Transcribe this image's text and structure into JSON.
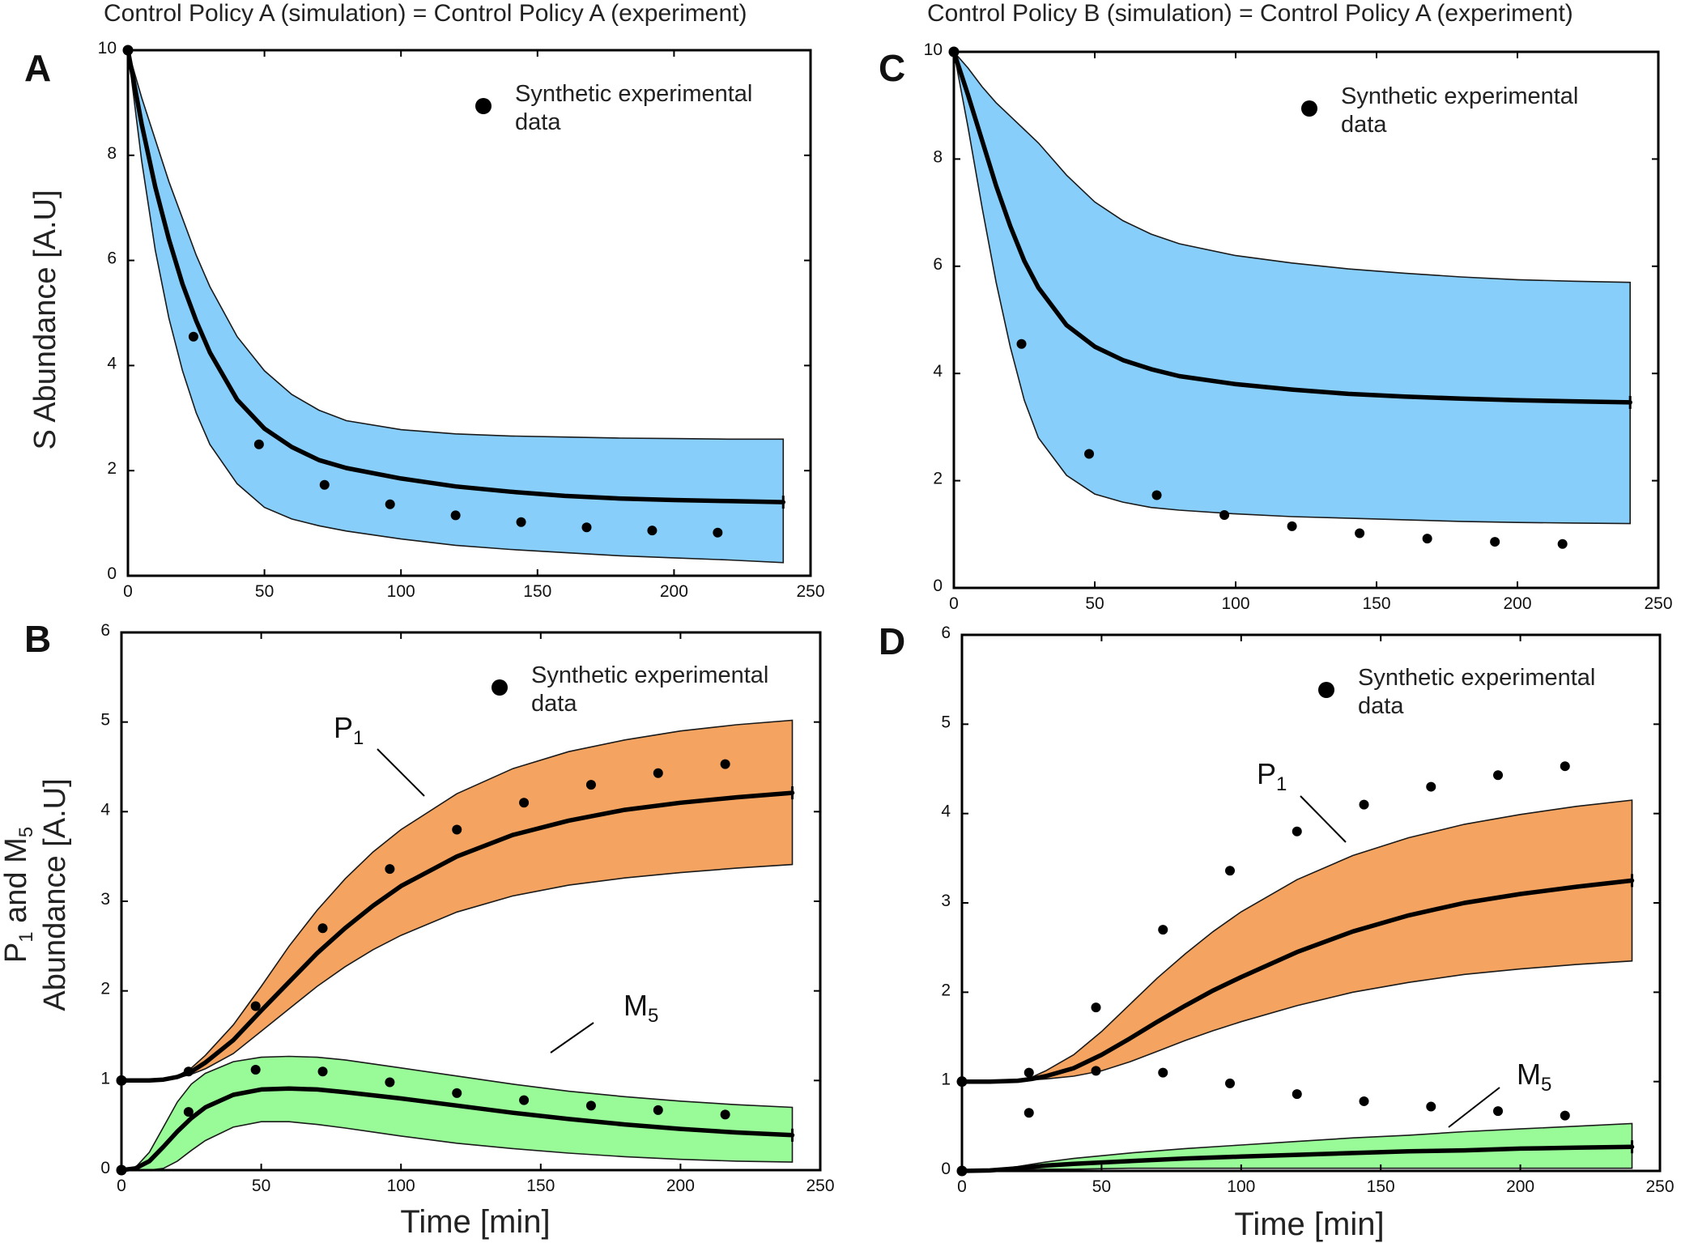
{
  "headings": {
    "left": "Control Policy A (simulation) =  Control Policy A (experiment)",
    "right": "Control Policy B (simulation) =  Control Policy A (experiment)"
  },
  "axis_labels": {
    "top_y": "S Abundance [A.U]",
    "bottom_y_line1_prefix": "P",
    "bottom_y_line1_sub1": "1",
    "bottom_y_line1_mid": " and M",
    "bottom_y_line1_sub2": "5",
    "bottom_y_line2": "Abundance [A.U]",
    "x": "Time [min]"
  },
  "colors": {
    "s_band": "#87cefa",
    "p1_band": "#f4a460",
    "m5_band": "#98fb98",
    "line": "#000000",
    "dots": "#000000"
  },
  "chart_data": [
    {
      "panel": "A",
      "type": "line",
      "title": "Control Policy A (simulation) =  Control Policy A (experiment)",
      "xlabel": "",
      "ylabel": "S Abundance [A.U]",
      "xlim": [
        0,
        250
      ],
      "ylim": [
        0,
        10
      ],
      "xticks": [
        0,
        50,
        100,
        150,
        200,
        250
      ],
      "yticks": [
        0,
        2,
        4,
        6,
        8,
        10
      ],
      "legend": {
        "label_line1": "Synthetic experimental",
        "label_line2": "data",
        "position": "top-right"
      },
      "series": [
        {
          "name": "S",
          "band_color": "#87cefa",
          "x": [
            0,
            5,
            10,
            15,
            20,
            25,
            30,
            40,
            50,
            60,
            70,
            80,
            100,
            120,
            140,
            160,
            180,
            200,
            220,
            240
          ],
          "mean": [
            10,
            8.6,
            7.4,
            6.4,
            5.55,
            4.85,
            4.25,
            3.35,
            2.8,
            2.45,
            2.2,
            2.05,
            1.85,
            1.7,
            1.6,
            1.52,
            1.47,
            1.44,
            1.42,
            1.4
          ],
          "upper": [
            10,
            9.1,
            8.3,
            7.5,
            6.8,
            6.1,
            5.5,
            4.55,
            3.9,
            3.45,
            3.15,
            2.95,
            2.78,
            2.7,
            2.66,
            2.64,
            2.62,
            2.61,
            2.6,
            2.6
          ],
          "lower": [
            10,
            7.9,
            6.2,
            4.9,
            3.9,
            3.1,
            2.5,
            1.75,
            1.3,
            1.08,
            0.95,
            0.85,
            0.7,
            0.58,
            0.5,
            0.44,
            0.38,
            0.34,
            0.3,
            0.25
          ]
        }
      ],
      "experimental_data": {
        "x": [
          0,
          24,
          48,
          72,
          96,
          120,
          144,
          168,
          192,
          216
        ],
        "y": [
          10,
          4.55,
          2.5,
          1.73,
          1.36,
          1.15,
          1.02,
          0.92,
          0.86,
          0.82
        ]
      }
    },
    {
      "panel": "B",
      "type": "line",
      "title": "",
      "xlabel": "Time [min]",
      "ylabel": "P1 and M5 Abundance [A.U]",
      "xlim": [
        0,
        250
      ],
      "ylim": [
        0,
        6
      ],
      "xticks": [
        0,
        50,
        100,
        150,
        200,
        250
      ],
      "yticks": [
        0,
        1,
        2,
        3,
        4,
        5,
        6
      ],
      "legend": {
        "label_line1": "Synthetic experimental",
        "label_line2": "data",
        "position": "top-right"
      },
      "annotations": [
        {
          "text": "P",
          "sub": "1",
          "target": "P1 band"
        },
        {
          "text": "M",
          "sub": "5",
          "target": "M5 band"
        }
      ],
      "series": [
        {
          "name": "P1",
          "band_color": "#f4a460",
          "x": [
            0,
            10,
            15,
            20,
            25,
            30,
            40,
            50,
            60,
            70,
            80,
            90,
            100,
            120,
            140,
            160,
            180,
            200,
            220,
            240
          ],
          "mean": [
            1,
            1,
            1.01,
            1.04,
            1.1,
            1.2,
            1.45,
            1.78,
            2.1,
            2.42,
            2.7,
            2.95,
            3.17,
            3.5,
            3.74,
            3.9,
            4.02,
            4.1,
            4.16,
            4.21
          ],
          "upper": [
            1,
            1,
            1.01,
            1.05,
            1.14,
            1.28,
            1.62,
            2.05,
            2.5,
            2.9,
            3.25,
            3.55,
            3.8,
            4.2,
            4.48,
            4.67,
            4.8,
            4.9,
            4.97,
            5.02
          ],
          "lower": [
            1,
            1,
            1.01,
            1.03,
            1.07,
            1.13,
            1.3,
            1.55,
            1.8,
            2.05,
            2.27,
            2.46,
            2.62,
            2.88,
            3.06,
            3.18,
            3.26,
            3.32,
            3.37,
            3.41
          ]
        },
        {
          "name": "M5",
          "band_color": "#98fb98",
          "x": [
            0,
            5,
            10,
            15,
            20,
            25,
            30,
            40,
            50,
            60,
            70,
            80,
            100,
            120,
            140,
            160,
            180,
            200,
            220,
            240
          ],
          "mean": [
            0,
            0.02,
            0.1,
            0.26,
            0.43,
            0.58,
            0.7,
            0.84,
            0.9,
            0.91,
            0.9,
            0.87,
            0.8,
            0.72,
            0.64,
            0.57,
            0.51,
            0.46,
            0.42,
            0.39
          ],
          "upper": [
            0,
            0.03,
            0.2,
            0.48,
            0.76,
            0.96,
            1.08,
            1.21,
            1.26,
            1.27,
            1.26,
            1.23,
            1.14,
            1.05,
            0.96,
            0.88,
            0.82,
            0.77,
            0.73,
            0.7
          ],
          "lower": [
            0,
            0,
            0,
            0.02,
            0.1,
            0.22,
            0.33,
            0.48,
            0.54,
            0.54,
            0.51,
            0.47,
            0.38,
            0.3,
            0.24,
            0.19,
            0.15,
            0.12,
            0.1,
            0.09
          ]
        }
      ],
      "experimental_data": {
        "x": [
          0,
          24,
          48,
          72,
          96,
          120,
          144,
          168,
          192,
          216,
          0,
          24,
          48,
          72,
          96,
          120,
          144,
          168,
          192,
          216
        ],
        "y": [
          1,
          1.1,
          1.83,
          2.7,
          3.36,
          3.8,
          4.1,
          4.3,
          4.43,
          4.53,
          0,
          0.65,
          1.12,
          1.1,
          0.98,
          0.86,
          0.78,
          0.72,
          0.67,
          0.62
        ]
      }
    },
    {
      "panel": "C",
      "type": "line",
      "title": "Control Policy B (simulation) =  Control Policy A (experiment)",
      "xlabel": "",
      "ylabel": "",
      "xlim": [
        0,
        250
      ],
      "ylim": [
        0,
        10
      ],
      "xticks": [
        0,
        50,
        100,
        150,
        200,
        250
      ],
      "yticks": [
        0,
        2,
        4,
        6,
        8,
        10
      ],
      "legend": {
        "label_line1": "Synthetic experimental",
        "label_line2": "data",
        "position": "top-right"
      },
      "series": [
        {
          "name": "S",
          "band_color": "#87cefa",
          "x": [
            0,
            5,
            10,
            15,
            20,
            25,
            30,
            40,
            50,
            60,
            70,
            80,
            100,
            120,
            140,
            160,
            180,
            200,
            220,
            240
          ],
          "mean": [
            10,
            9.2,
            8.35,
            7.5,
            6.75,
            6.1,
            5.6,
            4.9,
            4.5,
            4.25,
            4.08,
            3.95,
            3.8,
            3.7,
            3.62,
            3.57,
            3.53,
            3.5,
            3.48,
            3.46
          ],
          "upper": [
            10,
            9.7,
            9.35,
            9.05,
            8.8,
            8.55,
            8.3,
            7.7,
            7.2,
            6.85,
            6.6,
            6.42,
            6.2,
            6.06,
            5.95,
            5.87,
            5.8,
            5.75,
            5.72,
            5.7
          ],
          "lower": [
            10,
            8.6,
            7.1,
            5.7,
            4.5,
            3.5,
            2.8,
            2.1,
            1.75,
            1.6,
            1.5,
            1.45,
            1.38,
            1.33,
            1.3,
            1.27,
            1.24,
            1.22,
            1.21,
            1.2
          ]
        }
      ],
      "experimental_data": {
        "x": [
          0,
          24,
          48,
          72,
          96,
          120,
          144,
          168,
          192,
          216
        ],
        "y": [
          10,
          4.55,
          2.5,
          1.73,
          1.36,
          1.15,
          1.02,
          0.92,
          0.86,
          0.82
        ]
      }
    },
    {
      "panel": "D",
      "type": "line",
      "title": "",
      "xlabel": "Time [min]",
      "ylabel": "",
      "xlim": [
        0,
        250
      ],
      "ylim": [
        0,
        6
      ],
      "xticks": [
        0,
        50,
        100,
        150,
        200,
        250
      ],
      "yticks": [
        0,
        1,
        2,
        3,
        4,
        5,
        6
      ],
      "legend": {
        "label_line1": "Synthetic experimental",
        "label_line2": "data",
        "position": "top-right"
      },
      "annotations": [
        {
          "text": "P",
          "sub": "1",
          "target": "P1 band"
        },
        {
          "text": "M",
          "sub": "5",
          "target": "M5 band"
        }
      ],
      "series": [
        {
          "name": "P1",
          "band_color": "#f4a460",
          "x": [
            0,
            10,
            20,
            25,
            30,
            40,
            50,
            60,
            70,
            80,
            90,
            100,
            120,
            140,
            160,
            180,
            200,
            220,
            240
          ],
          "mean": [
            1,
            1,
            1.01,
            1.03,
            1.06,
            1.15,
            1.3,
            1.48,
            1.67,
            1.85,
            2.02,
            2.17,
            2.45,
            2.68,
            2.86,
            3.0,
            3.1,
            3.18,
            3.25
          ],
          "upper": [
            1,
            1,
            1.02,
            1.05,
            1.12,
            1.3,
            1.56,
            1.86,
            2.16,
            2.43,
            2.68,
            2.9,
            3.26,
            3.53,
            3.73,
            3.88,
            3.99,
            4.08,
            4.15
          ],
          "lower": [
            1,
            1,
            1.01,
            1.02,
            1.03,
            1.06,
            1.12,
            1.22,
            1.34,
            1.46,
            1.57,
            1.67,
            1.85,
            2.0,
            2.11,
            2.2,
            2.26,
            2.31,
            2.35
          ]
        },
        {
          "name": "M5",
          "band_color": "#98fb98",
          "x": [
            0,
            10,
            20,
            30,
            40,
            60,
            80,
            100,
            120,
            140,
            160,
            180,
            200,
            220,
            240
          ],
          "mean": [
            0,
            0.005,
            0.03,
            0.06,
            0.08,
            0.11,
            0.14,
            0.16,
            0.18,
            0.2,
            0.22,
            0.23,
            0.25,
            0.26,
            0.27
          ],
          "upper": [
            0,
            0.01,
            0.05,
            0.1,
            0.14,
            0.2,
            0.25,
            0.29,
            0.33,
            0.37,
            0.4,
            0.44,
            0.47,
            0.5,
            0.53
          ],
          "lower": [
            0,
            0,
            0.01,
            0.02,
            0.02,
            0.03,
            0.03,
            0.03,
            0.03,
            0.03,
            0.03,
            0.03,
            0.03,
            0.03,
            0.03
          ]
        }
      ],
      "experimental_data": {
        "x": [
          0,
          24,
          48,
          72,
          96,
          120,
          144,
          168,
          192,
          216,
          0,
          24,
          48,
          72,
          96,
          120,
          144,
          168,
          192,
          216
        ],
        "y": [
          1,
          1.1,
          1.83,
          2.7,
          3.36,
          3.8,
          4.1,
          4.3,
          4.43,
          4.53,
          0,
          0.65,
          1.12,
          1.1,
          0.98,
          0.86,
          0.78,
          0.72,
          0.67,
          0.62
        ]
      }
    }
  ]
}
